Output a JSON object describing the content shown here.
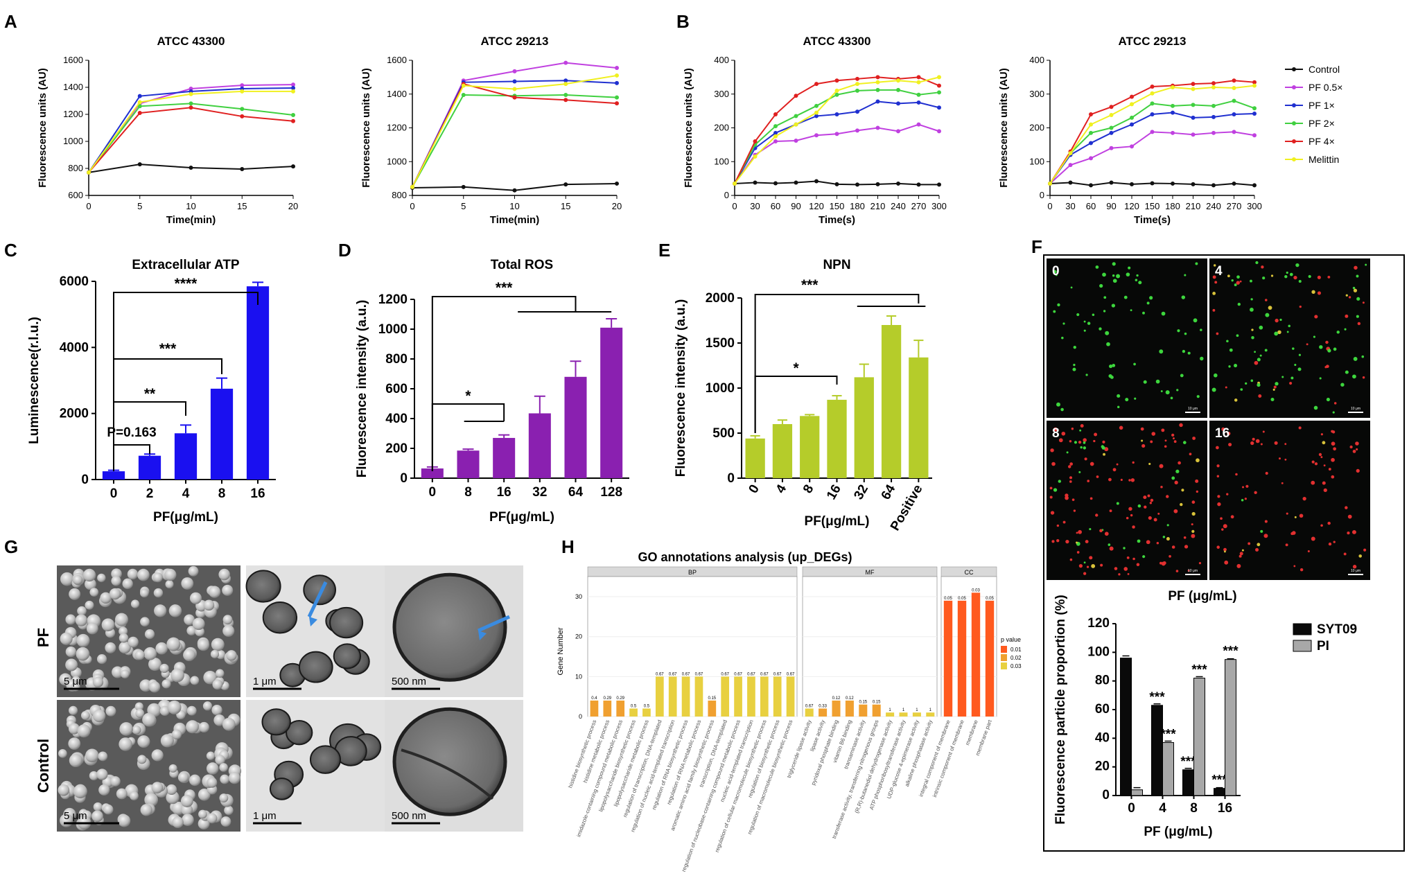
{
  "panels": {
    "A": "A",
    "B": "B",
    "C": "C",
    "D": "D",
    "E": "E",
    "F": "F",
    "G": "G",
    "H": "H"
  },
  "colors": {
    "Control": "#111111",
    "PF 0.5×": "#c040e0",
    "PF 1×": "#2030d0",
    "PF 2×": "#40d040",
    "PF 4×": "#e02020",
    "Melittin": "#f0f020",
    "blue": "#1a10f0",
    "purple": "#8a20b0",
    "olive": "#b5cc2a",
    "syt": "#0a0a0a",
    "pi": "#a8a8a8"
  },
  "chart_data": [
    {
      "id": "A1",
      "type": "line",
      "title": "ATCC 43300",
      "xlabel": "Time(min)",
      "ylabel": "Fluorescence units (AU)",
      "x": [
        0,
        5,
        10,
        15,
        20
      ],
      "xlim": [
        0,
        20
      ],
      "xticks": [
        0,
        5,
        10,
        15,
        20
      ],
      "ylim": [
        600,
        1600
      ],
      "yticks": [
        600,
        800,
        1000,
        1200,
        1400,
        1600
      ],
      "series": [
        {
          "name": "Control",
          "values": [
            770,
            830,
            805,
            795,
            815
          ]
        },
        {
          "name": "PF 0.5×",
          "values": [
            770,
            1280,
            1390,
            1415,
            1420
          ]
        },
        {
          "name": "PF 1×",
          "values": [
            770,
            1335,
            1370,
            1390,
            1395
          ]
        },
        {
          "name": "PF 2×",
          "values": [
            770,
            1260,
            1280,
            1240,
            1195
          ]
        },
        {
          "name": "PF 4×",
          "values": [
            770,
            1210,
            1250,
            1185,
            1150
          ]
        },
        {
          "name": "Melittin",
          "values": [
            770,
            1290,
            1350,
            1370,
            1370
          ]
        }
      ]
    },
    {
      "id": "A2",
      "type": "line",
      "title": "ATCC 29213",
      "xlabel": "Time(min)",
      "ylabel": "Fluorescence units (AU)",
      "x": [
        0,
        5,
        10,
        15,
        20
      ],
      "xlim": [
        0,
        20
      ],
      "xticks": [
        0,
        5,
        10,
        15,
        20
      ],
      "ylim": [
        800,
        1600
      ],
      "yticks": [
        800,
        1000,
        1200,
        1400,
        1600
      ],
      "series": [
        {
          "name": "Control",
          "values": [
            845,
            850,
            830,
            865,
            870
          ]
        },
        {
          "name": "PF 0.5×",
          "values": [
            850,
            1480,
            1535,
            1585,
            1555
          ]
        },
        {
          "name": "PF 1×",
          "values": [
            850,
            1470,
            1475,
            1480,
            1465
          ]
        },
        {
          "name": "PF 2×",
          "values": [
            850,
            1395,
            1390,
            1395,
            1380
          ]
        },
        {
          "name": "PF 4×",
          "values": [
            850,
            1460,
            1380,
            1365,
            1345
          ]
        },
        {
          "name": "Melittin",
          "values": [
            850,
            1450,
            1430,
            1460,
            1510
          ]
        }
      ]
    },
    {
      "id": "B1",
      "type": "line",
      "title": "ATCC 43300",
      "xlabel": "Time(s)",
      "ylabel": "Fluorescence units (AU)",
      "x": [
        0,
        30,
        60,
        90,
        120,
        150,
        180,
        210,
        240,
        270,
        300
      ],
      "xlim": [
        0,
        300
      ],
      "xticks": [
        0,
        30,
        60,
        90,
        120,
        150,
        180,
        210,
        240,
        270,
        300
      ],
      "ylim": [
        0,
        400
      ],
      "yticks": [
        0,
        100,
        200,
        300,
        400
      ],
      "series": [
        {
          "name": "Control",
          "values": [
            35,
            38,
            36,
            38,
            42,
            33,
            32,
            33,
            35,
            32,
            32
          ]
        },
        {
          "name": "PF 0.5×",
          "values": [
            35,
            120,
            160,
            162,
            178,
            182,
            192,
            200,
            190,
            210,
            190
          ]
        },
        {
          "name": "PF 1×",
          "values": [
            35,
            140,
            185,
            210,
            235,
            240,
            248,
            278,
            272,
            275,
            260
          ]
        },
        {
          "name": "PF 2×",
          "values": [
            35,
            150,
            205,
            235,
            265,
            298,
            310,
            312,
            312,
            298,
            305
          ]
        },
        {
          "name": "PF 4×",
          "values": [
            35,
            160,
            240,
            295,
            330,
            340,
            345,
            350,
            345,
            350,
            325
          ]
        },
        {
          "name": "Melittin",
          "values": [
            35,
            115,
            175,
            210,
            245,
            310,
            330,
            335,
            340,
            335,
            350
          ]
        }
      ]
    },
    {
      "id": "B2",
      "type": "line",
      "title": "ATCC 29213",
      "xlabel": "Time(s)",
      "ylabel": "Fluorescence units (AU)",
      "x": [
        0,
        30,
        60,
        90,
        120,
        150,
        180,
        210,
        240,
        270,
        300
      ],
      "xlim": [
        0,
        300
      ],
      "xticks": [
        0,
        30,
        60,
        90,
        120,
        150,
        180,
        210,
        240,
        270,
        300
      ],
      "ylim": [
        0,
        400
      ],
      "yticks": [
        0,
        100,
        200,
        300,
        400
      ],
      "series": [
        {
          "name": "Control",
          "values": [
            35,
            38,
            30,
            38,
            33,
            36,
            35,
            33,
            30,
            35,
            30
          ]
        },
        {
          "name": "PF 0.5×",
          "values": [
            35,
            90,
            110,
            140,
            145,
            188,
            185,
            180,
            185,
            188,
            178
          ]
        },
        {
          "name": "PF 1×",
          "values": [
            35,
            120,
            155,
            185,
            210,
            240,
            245,
            230,
            232,
            240,
            242
          ]
        },
        {
          "name": "PF 2×",
          "values": [
            35,
            125,
            185,
            200,
            230,
            272,
            265,
            268,
            265,
            280,
            258
          ]
        },
        {
          "name": "PF 4×",
          "values": [
            35,
            130,
            240,
            262,
            292,
            322,
            325,
            330,
            332,
            340,
            335
          ]
        },
        {
          "name": "Melittin",
          "values": [
            35,
            125,
            210,
            238,
            270,
            302,
            320,
            315,
            320,
            318,
            325
          ]
        }
      ]
    },
    {
      "id": "C",
      "type": "bar",
      "title": "Extracellular ATP",
      "xlabel": "PF(μg/mL)",
      "ylabel": "Luminescence(r.l.u.)",
      "categories": [
        "0",
        "2",
        "4",
        "8",
        "16"
      ],
      "values": [
        250,
        720,
        1400,
        2750,
        5850
      ],
      "errors": [
        30,
        50,
        250,
        320,
        120
      ],
      "ylim": [
        0,
        6000
      ],
      "yticks": [
        0,
        2000,
        4000,
        6000
      ],
      "annotations": [
        "P=0.163",
        "**",
        "***",
        "****"
      ]
    },
    {
      "id": "D",
      "type": "bar",
      "title": "Total ROS",
      "xlabel": "PF(μg/mL)",
      "ylabel": "Fluorescence intensity (a.u.)",
      "categories": [
        "0",
        "8",
        "16",
        "32",
        "64",
        "128"
      ],
      "values": [
        65,
        185,
        270,
        435,
        680,
        1010
      ],
      "errors": [
        10,
        10,
        20,
        115,
        105,
        60
      ],
      "ylim": [
        0,
        1200
      ],
      "yticks": [
        0,
        200,
        400,
        600,
        800,
        1000,
        1200
      ],
      "annotations": [
        "*",
        "***"
      ]
    },
    {
      "id": "E",
      "type": "bar",
      "title": "NPN",
      "xlabel": "PF(μg/mL)",
      "ylabel": "Fluorescence intensity (a.u.)",
      "categories": [
        "0",
        "4",
        "8",
        "16",
        "32",
        "64",
        "Positive"
      ],
      "values": [
        440,
        600,
        690,
        870,
        1120,
        1700,
        1340
      ],
      "errors": [
        30,
        45,
        15,
        45,
        145,
        100,
        190
      ],
      "ylim": [
        0,
        2000
      ],
      "yticks": [
        0,
        500,
        1000,
        1500,
        2000
      ],
      "annotations": [
        "*",
        "***"
      ]
    },
    {
      "id": "F",
      "type": "bar",
      "xlabel": "PF (μg/mL)",
      "ylabel": "Fluorescence particle proportion (%)",
      "categories": [
        "0",
        "4",
        "8",
        "16"
      ],
      "series": [
        {
          "name": "SYT09",
          "values": [
            96,
            63,
            18,
            5
          ]
        },
        {
          "name": "PI",
          "values": [
            4,
            37,
            82,
            95
          ]
        }
      ],
      "errors": [
        1.5,
        1,
        1,
        0.5
      ],
      "ylim": [
        0,
        120
      ],
      "yticks": [
        0,
        20,
        40,
        60,
        80,
        100,
        120
      ],
      "annotations": [
        "***"
      ]
    },
    {
      "id": "H",
      "type": "bar",
      "title": "GO annotations analysis (up_DEGs)",
      "ylabel": "Gene Number",
      "facets": [
        "BP",
        "MF",
        "CC"
      ],
      "legend_title": "p value",
      "legend_values": [
        "0.01",
        "0.02",
        "0.03"
      ],
      "yticks": [
        0,
        10,
        20,
        30
      ],
      "ylim": [
        0,
        34
      ],
      "categories": [
        "histidine biosynthetic process",
        "histidine metabolic process",
        "imidazole-containing compound metabolic process",
        "lipopolysaccharide biosynthetic process",
        "lipopolysaccharide metabolic process",
        "regulation of transcription, DNA-templated",
        "regulation of nucleic acid-templated transcription",
        "regulation of RNA biosynthetic process",
        "regulation of RNA metabolic process",
        "aromatic amino acid family biosynthetic process",
        "transcription, DNA-templated",
        "regulation of nucleobase-containing compound metabolic process",
        "nucleic acid-templated transcription",
        "regulation of cellular macromolecule biosynthetic process",
        "regulation of biosynthetic process",
        "regulation of macromolecule biosynthetic process",
        "triglyceride lipase activity",
        "lipase activity",
        "pyridoxal phosphate binding",
        "vitamin B6 binding",
        "transaminase activity",
        "transferase activity, transferring nitrogenous groups",
        "(R,R)-butanediol dehydrogenase activity",
        "ATP phosphoribosyltransferase activity",
        "UDP-glucose 4-epimerase activity",
        "alkaline phosphatase activity",
        "integral component of membrane",
        "intrinsic component of membrane",
        "membrane",
        "membrane part"
      ],
      "facet_of": [
        "BP",
        "BP",
        "BP",
        "BP",
        "BP",
        "BP",
        "BP",
        "BP",
        "BP",
        "BP",
        "BP",
        "BP",
        "BP",
        "BP",
        "BP",
        "BP",
        "MF",
        "MF",
        "MF",
        "MF",
        "MF",
        "MF",
        "MF",
        "MF",
        "MF",
        "MF",
        "CC",
        "CC",
        "CC",
        "CC"
      ],
      "values": [
        4,
        4,
        4,
        2,
        2,
        10,
        10,
        10,
        10,
        4,
        10,
        10,
        10,
        10,
        10,
        10,
        2,
        2,
        4,
        4,
        3,
        3,
        1,
        1,
        1,
        1,
        29,
        29,
        31,
        29
      ],
      "pvalues": [
        "0.4",
        "0.29",
        "0.29",
        "0.5",
        "0.5",
        "0.67",
        "0.67",
        "0.67",
        "0.67",
        "0.15",
        "0.67",
        "0.67",
        "0.67",
        "0.67",
        "0.67",
        "0.67",
        "0.67",
        "0.33",
        "0.12",
        "0.12",
        "0.15",
        "0.15",
        "1",
        "1",
        "1",
        "1",
        "0.05",
        "0.05",
        "0.03",
        "0.05"
      ]
    }
  ],
  "legendB": [
    "Control",
    "PF 0.5×",
    "PF 1×",
    "PF 2×",
    "PF 4×",
    "Melittin"
  ],
  "F": {
    "micrograph_labels": [
      "0",
      "4",
      "8",
      "16"
    ],
    "scale_bar": "10 μm",
    "micro_xlabel": "PF (μg/mL)",
    "legend": [
      "SYT09",
      "PI"
    ]
  },
  "G": {
    "row_labels": [
      "PF",
      "Control"
    ],
    "scale_bars": [
      "5 μm",
      "1 μm",
      "500 nm",
      "5 μm",
      "1 μm",
      "500 nm"
    ]
  }
}
